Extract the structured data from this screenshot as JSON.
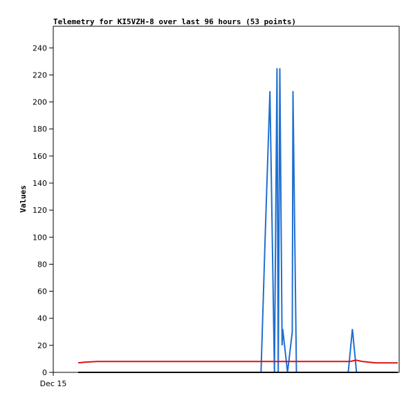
{
  "chart_data": {
    "type": "line",
    "title": "Telemetry for KI5VZH-8 over last 96 hours (53 points)",
    "xlabel": "",
    "ylabel": "Values",
    "x_ticks": [
      "Dec 15"
    ],
    "ylim": [
      0,
      256
    ],
    "y_ticks": [
      0,
      20,
      40,
      60,
      80,
      100,
      120,
      140,
      160,
      180,
      200,
      220,
      240
    ],
    "grid": false,
    "legend": "none",
    "series": [
      {
        "color": "#1f6fd0",
        "points": [
          [
            0.0,
            0
          ],
          [
            0.572,
            0
          ],
          [
            0.585,
            100
          ],
          [
            0.6,
            208
          ],
          [
            0.614,
            0
          ],
          [
            0.622,
            225
          ],
          [
            0.626,
            0
          ],
          [
            0.631,
            225
          ],
          [
            0.638,
            20
          ],
          [
            0.64,
            32
          ],
          [
            0.655,
            0
          ],
          [
            0.67,
            30
          ],
          [
            0.672,
            208
          ],
          [
            0.683,
            0
          ],
          [
            0.845,
            0
          ],
          [
            0.858,
            32
          ],
          [
            0.871,
            0
          ]
        ]
      },
      {
        "color": "#dd1111",
        "points": [
          [
            0.0,
            7
          ],
          [
            0.02,
            7.5
          ],
          [
            0.06,
            8
          ],
          [
            0.45,
            8
          ],
          [
            0.85,
            8
          ],
          [
            0.87,
            9
          ],
          [
            0.89,
            8
          ],
          [
            0.93,
            7
          ],
          [
            1.0,
            7
          ]
        ]
      },
      {
        "color": "#000000",
        "points": [
          [
            0.0,
            0
          ],
          [
            1.0,
            0
          ]
        ]
      }
    ]
  }
}
